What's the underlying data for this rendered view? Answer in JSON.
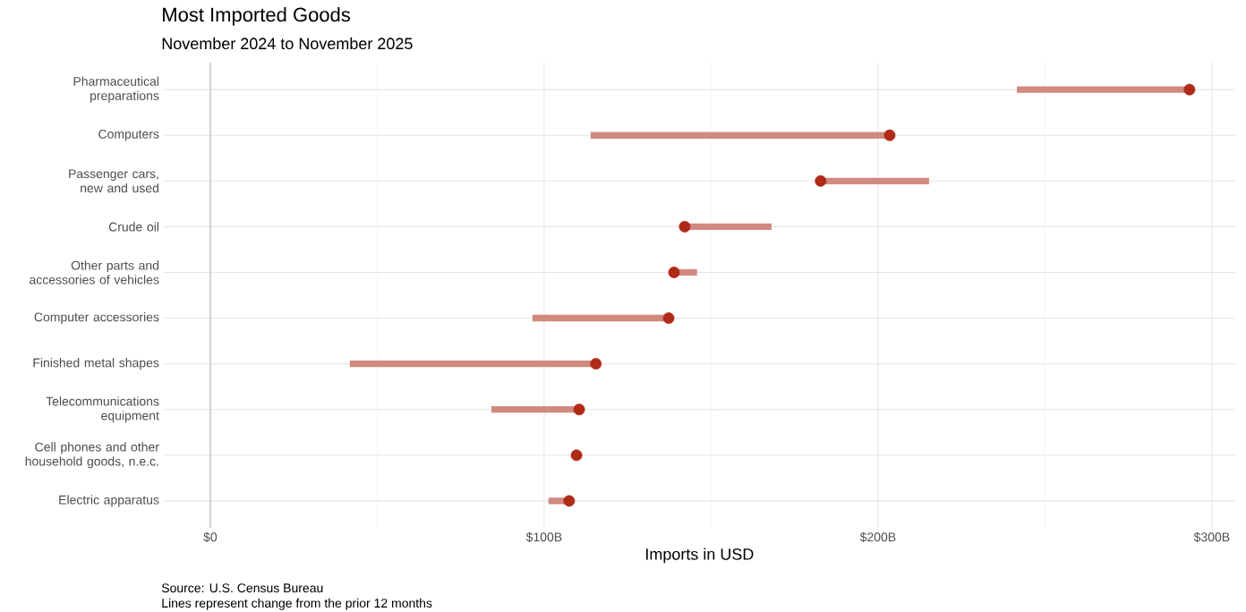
{
  "chart_data": {
    "type": "bar",
    "orientation": "horizontal",
    "title": "Most Imported Goods",
    "subtitle": "November 2024 to November 2025",
    "xlabel": "Imports in USD",
    "annotations": [
      "Source: U.S. Census Bureau",
      "Lines represent change from the prior 12 months"
    ],
    "categories": [
      "Pharmaceutical preparations",
      "Computers",
      "Passenger cars, new and used",
      "Crude oil",
      "Other parts and accessories of vehicles",
      "Computer accessories",
      "Finished metal shapes",
      "Telecommunications equipment",
      "Cell phones and other household goods, n.e.c.",
      "Electric apparatus"
    ],
    "xlim": [
      -14,
      307
    ],
    "xticks": [
      {
        "value": 0,
        "label": "$0"
      },
      {
        "value": 50,
        "label": null
      },
      {
        "value": 100,
        "label": "$100B"
      },
      {
        "value": 150,
        "label": null
      },
      {
        "value": 200,
        "label": "$200B"
      },
      {
        "value": 250,
        "label": null
      },
      {
        "value": 300,
        "label": "$300B"
      }
    ],
    "grid": true,
    "ref_lines": [
      {
        "axis": "x",
        "value": 0,
        "color": "#bdbdbd"
      }
    ],
    "series": [
      {
        "color": "#d08a80",
        "base": [
          241.6,
          113.9,
          215.3,
          168.1,
          145.8,
          96.5,
          41.8,
          84.2,
          null,
          101.3
        ],
        "values": [
          51.7,
          89.6,
          -32.5,
          -26.0,
          -6.9,
          40.8,
          73.7,
          26.3,
          null,
          6.2
        ]
      },
      {
        "type": "scatter",
        "color": "#b02a18",
        "marker": "circle",
        "values": [
          293.3,
          203.5,
          182.8,
          142.1,
          138.9,
          137.3,
          115.5,
          110.5,
          109.7,
          107.5
        ]
      }
    ]
  }
}
